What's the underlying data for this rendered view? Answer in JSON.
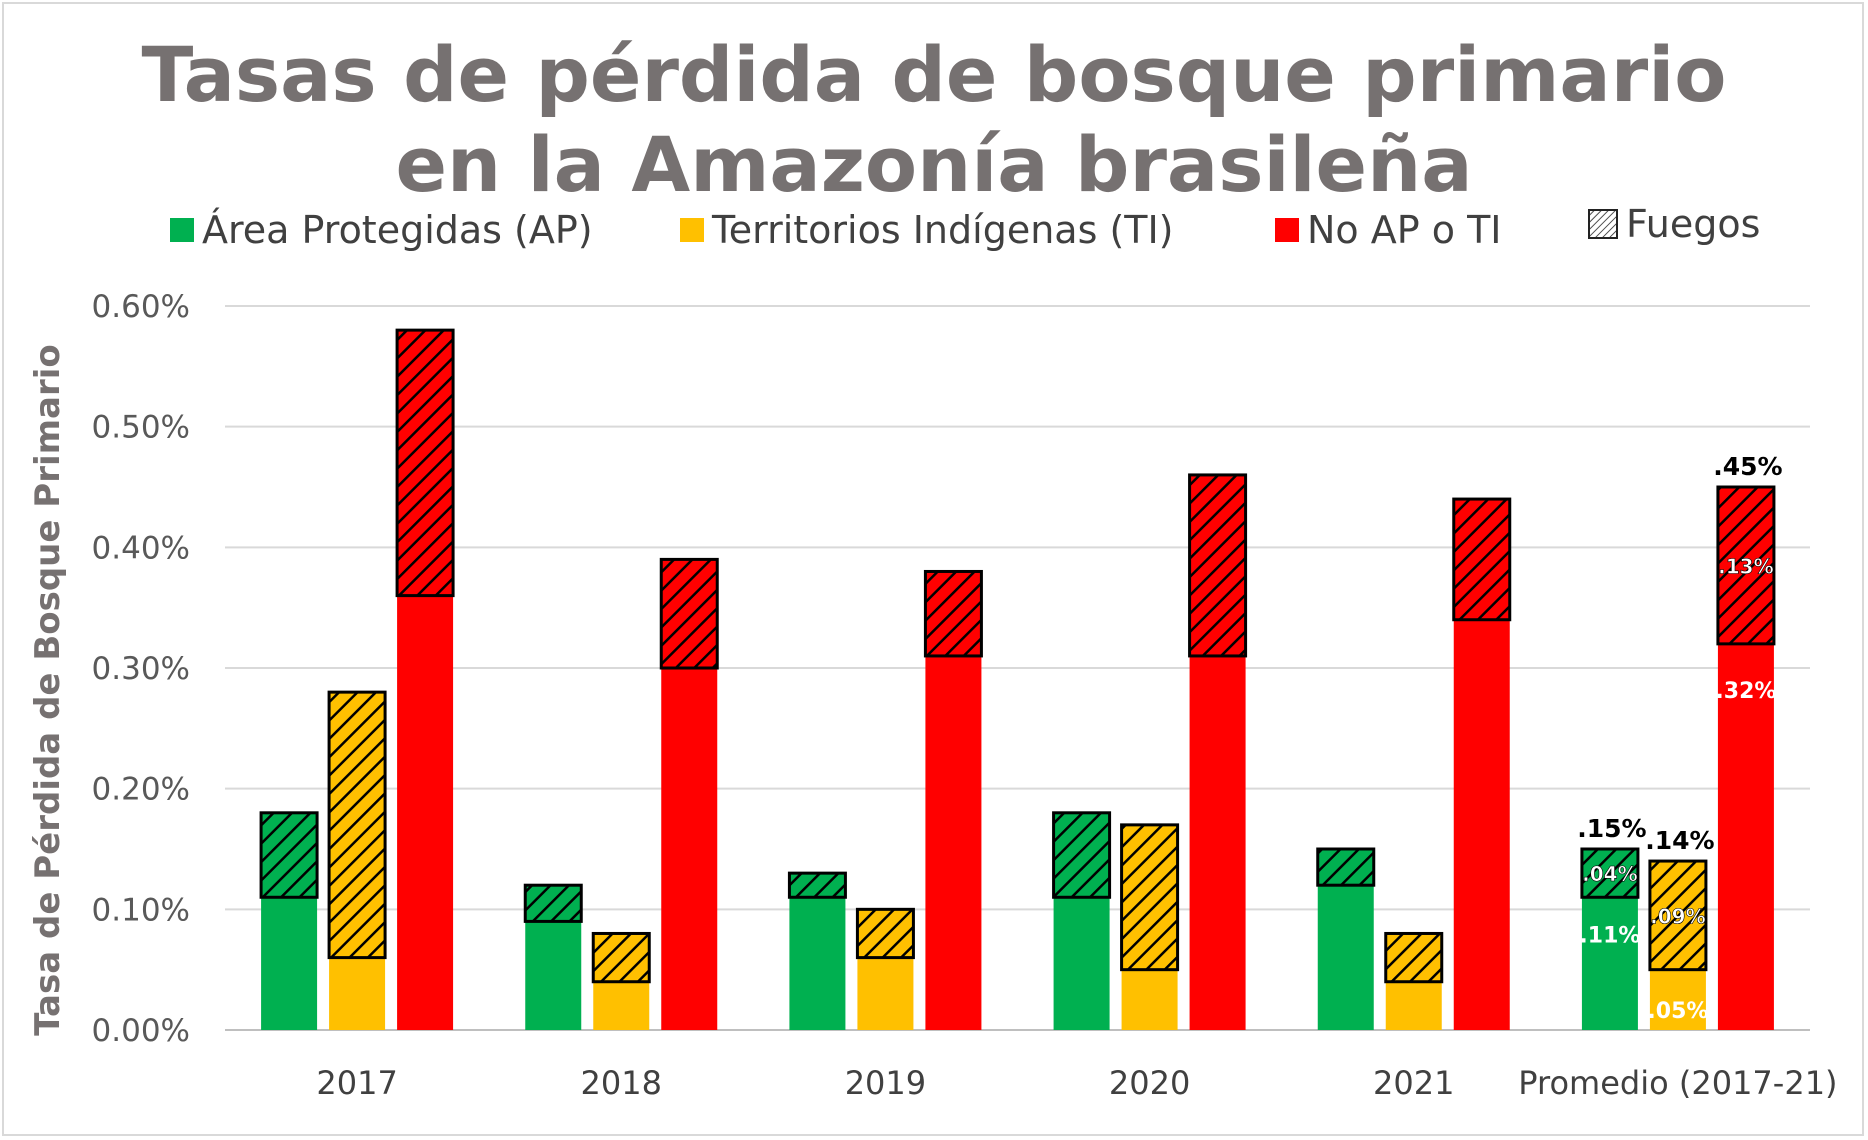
{
  "chart_data": {
    "type": "bar",
    "stacked": true,
    "title": [
      "Tasas de pérdida de bosque primario",
      "en la Amazonía brasileña"
    ],
    "ylabel": "Tasa de Pérdida de Bosque Primario",
    "xlabel": "",
    "ylim": [
      0,
      0.6
    ],
    "yticks": [
      "0.00%",
      "0.10%",
      "0.20%",
      "0.30%",
      "0.40%",
      "0.50%",
      "0.60%"
    ],
    "grid": true,
    "legend_position": "top",
    "categories": [
      "2017",
      "2018",
      "2019",
      "2020",
      "2021",
      "Promedio (2017-21)"
    ],
    "legend": [
      {
        "label": "Área Protegidas (AP)",
        "color": "#00b050"
      },
      {
        "label": "Territorios Indígenas (TI)",
        "color": "#ffc000"
      },
      {
        "label": "No AP o TI",
        "color": "#ff0000"
      },
      {
        "label": "Fuegos",
        "pattern": "hatch"
      }
    ],
    "series": [
      {
        "name": "Área Protegidas (AP)",
        "color": "#00b050",
        "base": [
          0.11,
          0.09,
          0.11,
          0.11,
          0.12,
          0.11
        ],
        "fuegos": [
          0.07,
          0.03,
          0.02,
          0.07,
          0.03,
          0.04
        ]
      },
      {
        "name": "Territorios Indígenas (TI)",
        "color": "#ffc000",
        "base": [
          0.06,
          0.04,
          0.06,
          0.05,
          0.04,
          0.05
        ],
        "fuegos": [
          0.22,
          0.04,
          0.04,
          0.12,
          0.04,
          0.09
        ]
      },
      {
        "name": "No AP o TI",
        "color": "#ff0000",
        "base": [
          0.36,
          0.3,
          0.31,
          0.31,
          0.34,
          0.32
        ],
        "fuegos": [
          0.22,
          0.09,
          0.07,
          0.15,
          0.1,
          0.13
        ]
      }
    ],
    "annotations": {
      "promedio": {
        "totals": [
          ".15%",
          ".14%",
          ".45%"
        ],
        "fuegos": [
          ".04%",
          ".09%",
          ".13%"
        ],
        "base": [
          ".11%",
          ".05%",
          ".32%"
        ]
      }
    }
  }
}
